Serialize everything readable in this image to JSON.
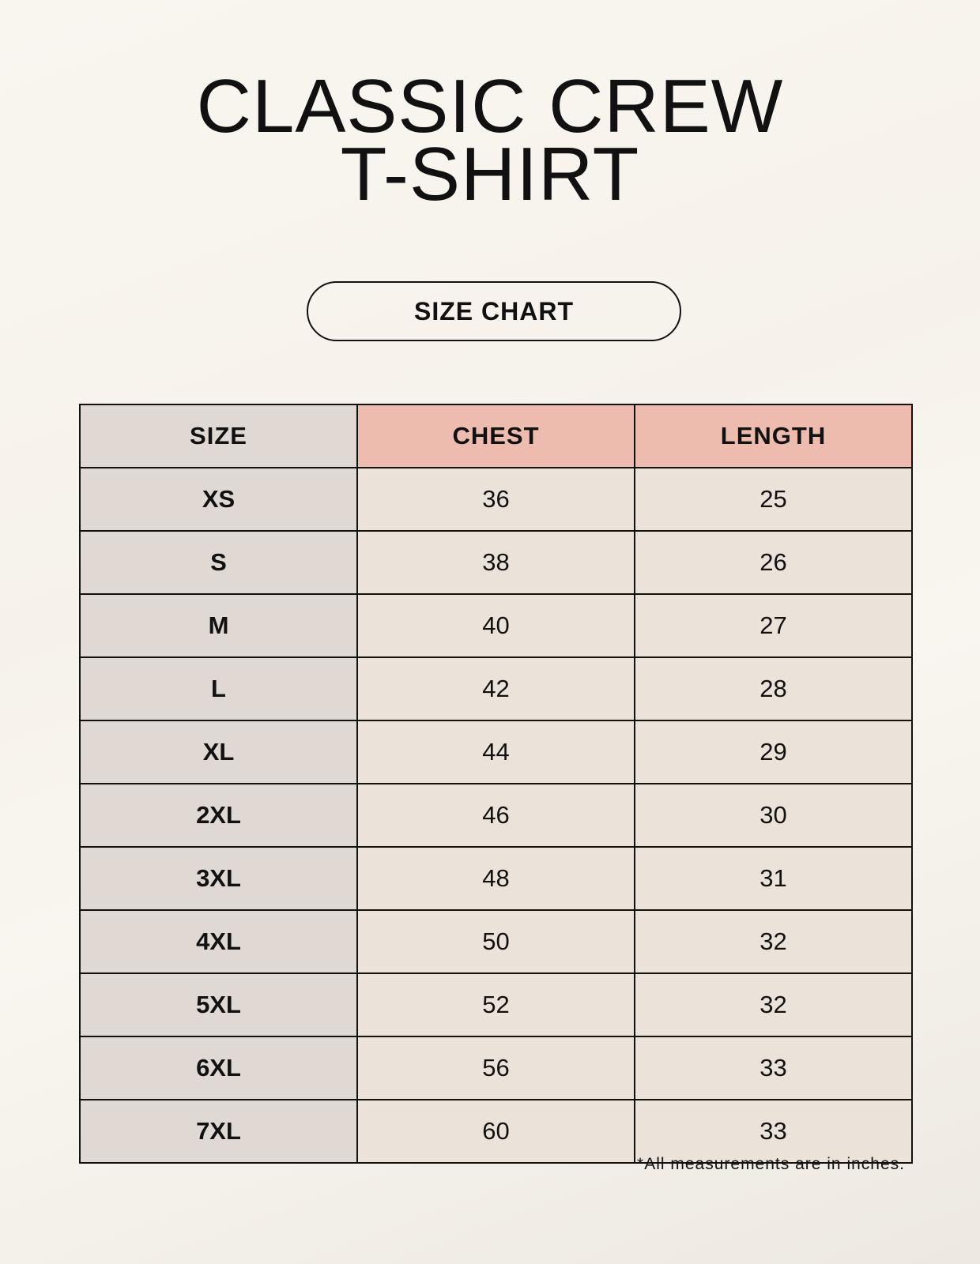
{
  "title": {
    "line1": "CLASSIC CREW",
    "line2": "T-SHIRT"
  },
  "subtitle": "SIZE CHART",
  "table": {
    "headers": [
      "SIZE",
      "CHEST",
      "LENGTH"
    ],
    "rows": [
      [
        "XS",
        "36",
        "25"
      ],
      [
        "S",
        "38",
        "26"
      ],
      [
        "M",
        "40",
        "27"
      ],
      [
        "L",
        "42",
        "28"
      ],
      [
        "XL",
        "44",
        "29"
      ],
      [
        "2XL",
        "46",
        "30"
      ],
      [
        "3XL",
        "48",
        "31"
      ],
      [
        "4XL",
        "50",
        "32"
      ],
      [
        "5XL",
        "52",
        "32"
      ],
      [
        "6XL",
        "56",
        "33"
      ],
      [
        "7XL",
        "60",
        "33"
      ]
    ]
  },
  "footnote": "*All measurements are in inches.",
  "colors": {
    "header_accent": "#eebcae",
    "size_column": "#e0d8d2",
    "value_cells": "#ebe3d9"
  }
}
